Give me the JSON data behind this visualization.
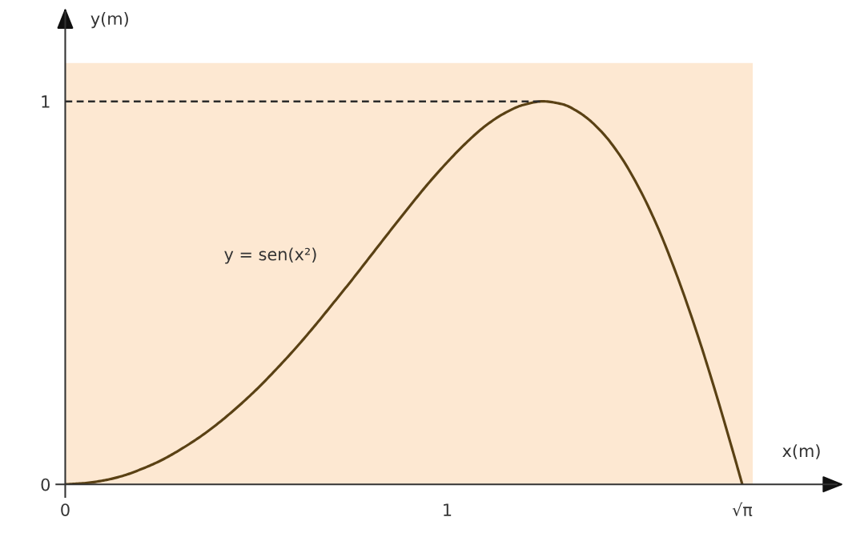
{
  "chart_data": {
    "type": "line",
    "xlabel": "x(m)",
    "ylabel": "y(m)",
    "xlim": [
      0,
      1.8
    ],
    "ylim": [
      0,
      1.1
    ],
    "xticks": [
      0,
      1,
      {
        "value": 1.7725,
        "label": "√π"
      }
    ],
    "yticks": [
      0,
      1
    ],
    "series": [
      {
        "name": "y = sen(x²)",
        "color": "#5a4114",
        "x": [
          0,
          0.05,
          0.1,
          0.15,
          0.2,
          0.25,
          0.3,
          0.35,
          0.4,
          0.45,
          0.5,
          0.55,
          0.6,
          0.65,
          0.7,
          0.75,
          0.8,
          0.85,
          0.9,
          0.95,
          1.0,
          1.05,
          1.1,
          1.15,
          1.2,
          1.25,
          1.3,
          1.35,
          1.4,
          1.45,
          1.5,
          1.55,
          1.6,
          1.65,
          1.7,
          1.75,
          1.7725
        ],
        "values": [
          0,
          0.003,
          0.01,
          0.022,
          0.04,
          0.062,
          0.09,
          0.122,
          0.159,
          0.201,
          0.247,
          0.298,
          0.352,
          0.41,
          0.471,
          0.533,
          0.597,
          0.661,
          0.724,
          0.785,
          0.841,
          0.892,
          0.936,
          0.969,
          0.991,
          1.0,
          0.993,
          0.968,
          0.925,
          0.862,
          0.778,
          0.674,
          0.549,
          0.407,
          0.249,
          0.079,
          0
        ]
      },
      {
        "color": "#2b2b2b",
        "x": [
          0,
          1.25
        ],
        "values": [
          1,
          1
        ],
        "line_style": "dashed"
      }
    ]
  }
}
